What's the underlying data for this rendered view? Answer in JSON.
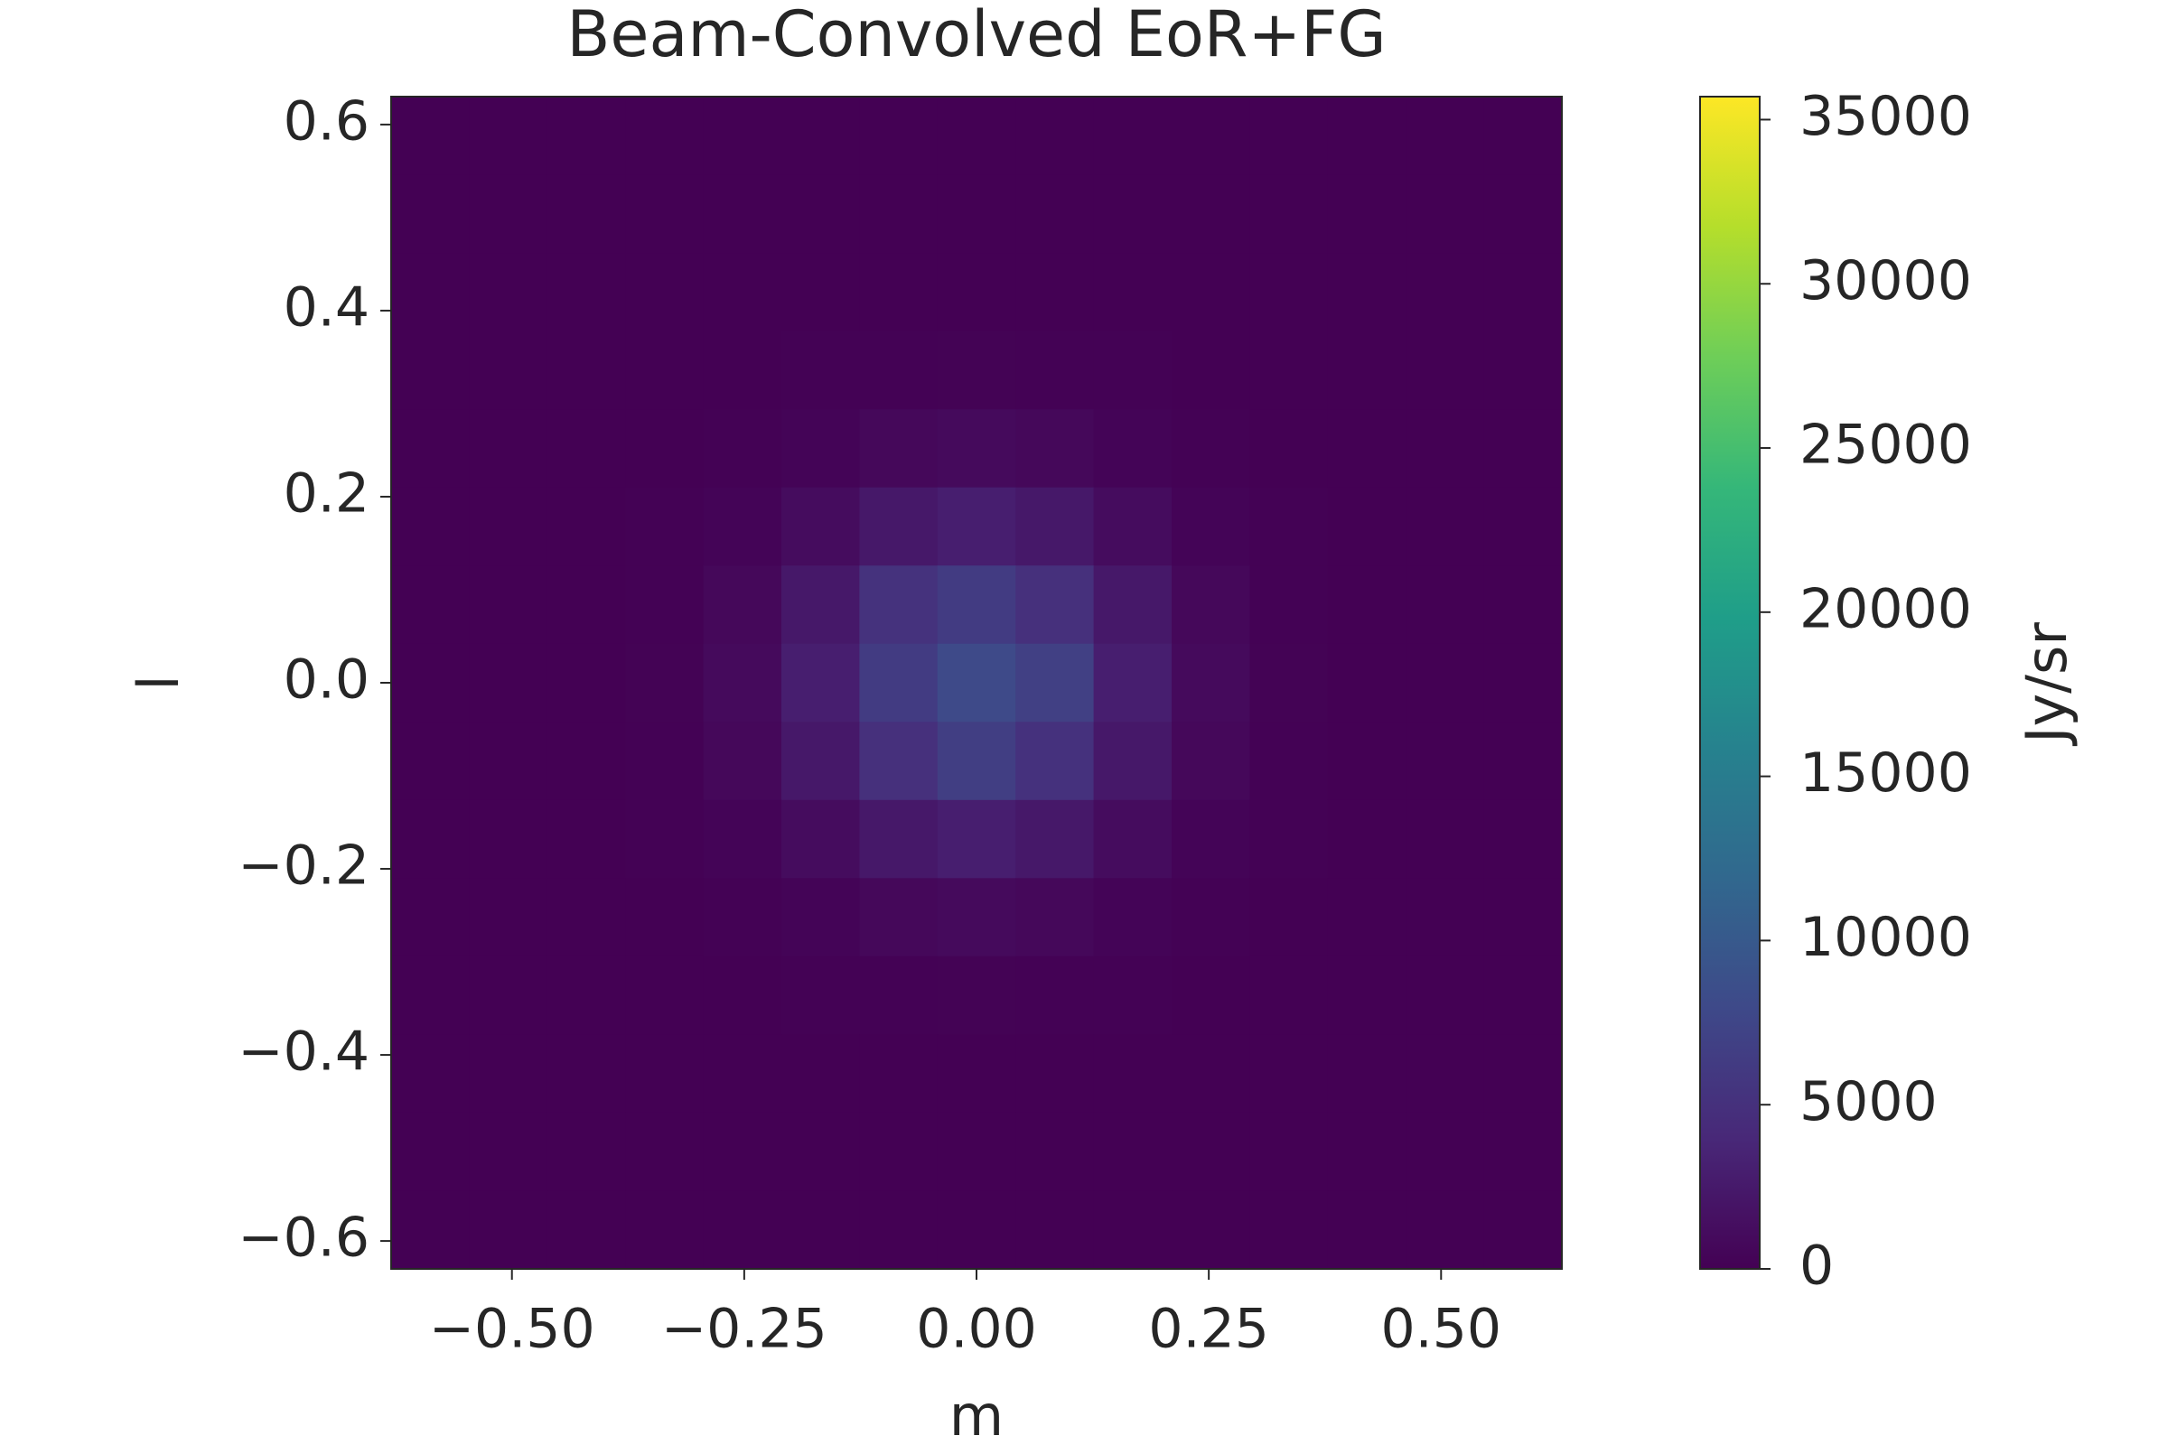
{
  "chart_data": {
    "type": "heatmap",
    "title": "Beam-Convolved EoR+FG",
    "x_label": "m",
    "y_label": "l",
    "xlim": [
      -0.63,
      0.63
    ],
    "ylim": [
      -0.63,
      0.63
    ],
    "xticks": [
      {
        "value": -0.5,
        "label": "−0.50"
      },
      {
        "value": -0.25,
        "label": "−0.25"
      },
      {
        "value": 0,
        "label": "0.00"
      },
      {
        "value": 0.25,
        "label": "0.25"
      },
      {
        "value": 0.5,
        "label": "0.50"
      }
    ],
    "yticks": [
      {
        "value": -0.6,
        "label": "−0.6"
      },
      {
        "value": -0.4,
        "label": "−0.4"
      },
      {
        "value": -0.2,
        "label": "−0.2"
      },
      {
        "value": 0,
        "label": "0.0"
      },
      0.2,
      0.4,
      0.6
    ],
    "colormap": "viridis",
    "colorbar_label": "Jy/sr",
    "clim": [
      0,
      35700
    ],
    "cticks": [
      0,
      5000,
      10000,
      15000,
      20000,
      25000,
      30000,
      35000
    ],
    "z": [
      [
        0,
        0,
        0,
        0,
        0,
        0,
        0,
        0,
        0,
        0,
        0,
        0,
        0,
        0,
        0
      ],
      [
        0,
        0,
        0,
        0,
        0,
        0,
        0,
        0,
        0,
        0,
        0,
        0,
        0,
        0,
        0
      ],
      [
        0,
        0,
        0,
        0,
        0,
        0,
        0,
        0,
        0,
        0,
        0,
        0,
        0,
        0,
        0
      ],
      [
        0,
        0,
        0,
        0,
        20,
        60,
        120,
        160,
        130,
        60,
        20,
        0,
        0,
        0,
        0
      ],
      [
        0,
        0,
        0,
        20,
        100,
        330,
        690,
        880,
        690,
        330,
        100,
        20,
        0,
        0,
        0
      ],
      [
        0,
        0,
        0,
        60,
        330,
        1130,
        2350,
        3000,
        2350,
        1130,
        330,
        60,
        0,
        0,
        0
      ],
      [
        0,
        0,
        0,
        120,
        690,
        2350,
        5200,
        6300,
        4900,
        2350,
        690,
        120,
        0,
        0,
        0
      ],
      [
        0,
        0,
        0,
        160,
        880,
        3000,
        6300,
        8000,
        6800,
        3000,
        880,
        160,
        0,
        0,
        0
      ],
      [
        0,
        0,
        0,
        120,
        690,
        2350,
        4900,
        6600,
        5100,
        2350,
        690,
        120,
        0,
        0,
        0
      ],
      [
        0,
        0,
        0,
        60,
        330,
        1130,
        2350,
        3000,
        2350,
        1130,
        330,
        60,
        0,
        0,
        0
      ],
      [
        0,
        0,
        0,
        20,
        100,
        330,
        690,
        880,
        690,
        330,
        100,
        20,
        0,
        0,
        0
      ],
      [
        0,
        0,
        0,
        0,
        20,
        60,
        120,
        160,
        130,
        60,
        20,
        0,
        0,
        0,
        0
      ],
      [
        0,
        0,
        0,
        0,
        0,
        0,
        0,
        0,
        0,
        0,
        0,
        0,
        0,
        0,
        0
      ],
      [
        0,
        0,
        0,
        0,
        0,
        0,
        0,
        0,
        0,
        0,
        0,
        0,
        0,
        0,
        0
      ],
      [
        0,
        0,
        0,
        0,
        0,
        0,
        0,
        0,
        0,
        0,
        0,
        0,
        0,
        0,
        0
      ]
    ]
  }
}
